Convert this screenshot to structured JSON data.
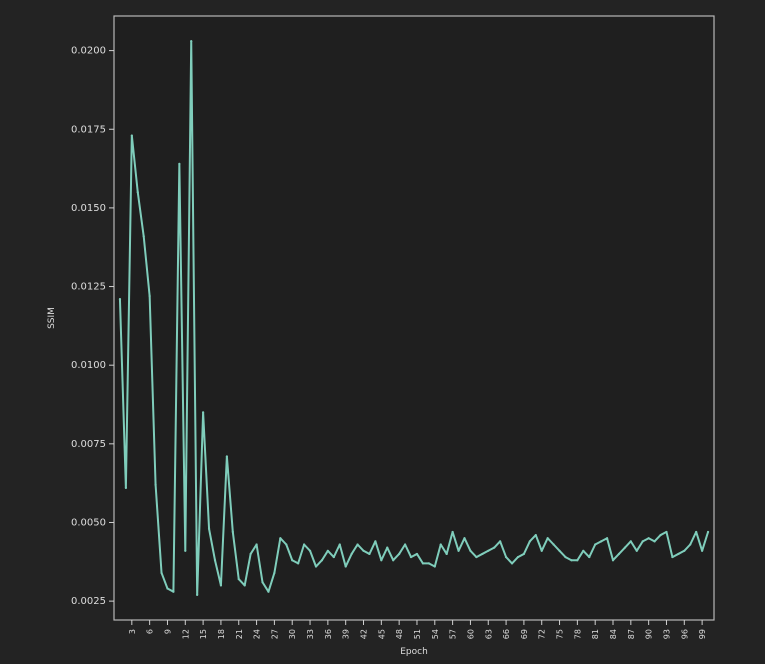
{
  "chart_data": {
    "type": "line",
    "title": "",
    "xlabel": "Epoch",
    "ylabel": "SSIM",
    "x_tick_labels": [
      3,
      6,
      9,
      12,
      15,
      18,
      21,
      24,
      27,
      30,
      33,
      36,
      39,
      42,
      45,
      48,
      51,
      54,
      57,
      60,
      63,
      66,
      69,
      72,
      75,
      78,
      81,
      84,
      87,
      90,
      93,
      96,
      99
    ],
    "y_ticks": [
      0.0025,
      0.005,
      0.0075,
      0.01,
      0.0125,
      0.015,
      0.0175,
      0.02
    ],
    "y_tick_labels": [
      "0.0025",
      "0.0050",
      "0.0075",
      "0.0100",
      "0.0125",
      "0.0150",
      "0.0175",
      "0.0200"
    ],
    "xlim": [
      0,
      101
    ],
    "ylim": [
      0.0019,
      0.0211
    ],
    "grid": false,
    "line_color": "#7fcdbb",
    "series": [
      {
        "x": [
          1,
          2,
          3,
          4,
          5,
          6,
          7,
          8,
          9,
          10,
          11,
          12,
          13,
          14,
          15,
          16,
          17,
          18,
          19,
          20,
          21,
          22,
          23,
          24,
          25,
          26,
          27,
          28,
          29,
          30,
          31,
          32,
          33,
          34,
          35,
          36,
          37,
          38,
          39,
          40,
          41,
          42,
          43,
          44,
          45,
          46,
          47,
          48,
          49,
          50,
          51,
          52,
          53,
          54,
          55,
          56,
          57,
          58,
          59,
          60,
          61,
          62,
          63,
          64,
          65,
          66,
          67,
          68,
          69,
          70,
          71,
          72,
          73,
          74,
          75,
          76,
          77,
          78,
          79,
          80,
          81,
          82,
          83,
          84,
          85,
          86,
          87,
          88,
          89,
          90,
          91,
          92,
          93,
          94,
          95,
          96,
          97,
          98,
          99,
          100
        ],
        "values": [
          0.0121,
          0.0061,
          0.0173,
          0.0155,
          0.0141,
          0.0122,
          0.0062,
          0.0034,
          0.0029,
          0.0028,
          0.0164,
          0.0041,
          0.0203,
          0.0027,
          0.0085,
          0.0048,
          0.0038,
          0.003,
          0.0071,
          0.0047,
          0.0032,
          0.003,
          0.004,
          0.0043,
          0.0031,
          0.0028,
          0.0034,
          0.0045,
          0.0043,
          0.0038,
          0.0037,
          0.0043,
          0.0041,
          0.0036,
          0.0038,
          0.0041,
          0.0039,
          0.0043,
          0.0036,
          0.004,
          0.0043,
          0.0041,
          0.004,
          0.0044,
          0.0038,
          0.0042,
          0.0038,
          0.004,
          0.0043,
          0.0039,
          0.004,
          0.0037,
          0.0037,
          0.0036,
          0.0043,
          0.004,
          0.0047,
          0.0041,
          0.0045,
          0.0041,
          0.0039,
          0.004,
          0.0041,
          0.0042,
          0.0044,
          0.0039,
          0.0037,
          0.0039,
          0.004,
          0.0044,
          0.0046,
          0.0041,
          0.0045,
          0.0043,
          0.0041,
          0.0039,
          0.0038,
          0.0038,
          0.0041,
          0.0039,
          0.0043,
          0.0044,
          0.0045,
          0.0038,
          0.004,
          0.0042,
          0.0044,
          0.0041,
          0.0044,
          0.0045,
          0.0044,
          0.0046,
          0.0047,
          0.0039,
          0.004,
          0.0041,
          0.0043,
          0.0047,
          0.0041,
          0.0047
        ]
      }
    ]
  }
}
